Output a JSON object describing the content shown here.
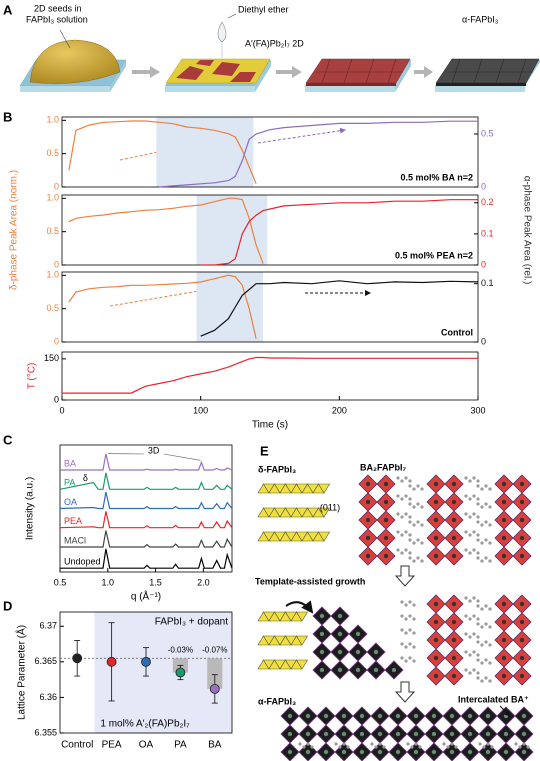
{
  "panels": {
    "a": "A",
    "b": "B",
    "c": "C",
    "d": "D",
    "e": "E"
  },
  "panel_a": {
    "seed_lines": [
      "2D seeds in",
      "FAPbI₃ solution"
    ],
    "ether": "Diethyl ether",
    "two_d": "A′(FA)Pb₂I₇ 2D",
    "alpha": "α-FAPbI₃"
  },
  "panel_b": {
    "ylabel": "δ-phase Peak Area (norm.)",
    "y2label": "α-phase Peak Area (rel.)"
  },
  "panel_e": {
    "delta": "δ-FAPbI₃",
    "layered": "BA₂FAPbI₇",
    "plane": "(011)",
    "growth": "Template-assisted growth",
    "alpha": "α-FAPbI₃",
    "intercalated": "Intercalated BA⁺"
  },
  "chart_data": [
    {
      "type": "line",
      "annotation": "0.5 mol% BA n=2",
      "xlim": [
        0,
        300
      ],
      "ylim": [
        0,
        1.05
      ],
      "yticks": [
        0,
        0.5,
        {
          "value": 1,
          "label": "1.0"
        }
      ],
      "y2lim": [
        0,
        0.66
      ],
      "y2ticks": [
        0,
        0.5
      ],
      "shaded": [
        68,
        138
      ],
      "x": [
        0,
        5,
        10,
        20,
        30,
        40,
        50,
        60,
        70,
        80,
        90,
        100,
        110,
        120,
        125,
        130,
        135,
        140,
        145,
        150,
        160,
        180,
        200,
        220,
        240,
        260,
        280,
        300
      ],
      "series": [
        {
          "color": "#f07f3c",
          "values": [
            null,
            0.25,
            0.85,
            0.93,
            0.97,
            0.98,
            0.99,
            0.99,
            0.97,
            0.95,
            0.9,
            0.88,
            0.85,
            0.8,
            0.75,
            0.55,
            0.3,
            0.05,
            null,
            null,
            null,
            null,
            null,
            null,
            null,
            null,
            null,
            null
          ]
        },
        {
          "color": "#8e6bbf",
          "axis": "y2",
          "values": [
            null,
            null,
            null,
            null,
            null,
            null,
            null,
            null,
            0,
            0.01,
            0.02,
            0.03,
            0.04,
            0.06,
            0.1,
            0.25,
            0.45,
            0.5,
            0.52,
            0.54,
            0.56,
            0.58,
            0.6,
            0.6,
            0.61,
            0.61,
            0.62,
            0.62
          ]
        }
      ]
    },
    {
      "type": "line",
      "annotation": "0.5 mol% PEA n=2",
      "xlim": [
        0,
        300
      ],
      "ylim": [
        0,
        1.05
      ],
      "yticks": [
        0,
        0.5,
        {
          "value": 1,
          "label": "1.0"
        }
      ],
      "y2lim": [
        0,
        0.225
      ],
      "y2ticks": [
        0,
        0.1,
        0.2
      ],
      "shaded": [
        97,
        148
      ],
      "x": [
        0,
        5,
        10,
        20,
        30,
        40,
        50,
        60,
        70,
        80,
        90,
        100,
        110,
        120,
        125,
        130,
        135,
        140,
        145,
        150,
        160,
        180,
        200,
        220,
        240,
        260,
        280,
        300
      ],
      "series": [
        {
          "color": "#f07f3c",
          "values": [
            null,
            0.65,
            0.7,
            0.73,
            0.75,
            0.78,
            0.8,
            0.82,
            0.83,
            0.85,
            0.88,
            0.9,
            0.95,
            1,
            1,
            0.98,
            0.7,
            0.3,
            0.02,
            null,
            null,
            null,
            null,
            null,
            null,
            null,
            null,
            null
          ]
        },
        {
          "color": "#e8242b",
          "axis": "y2",
          "values": [
            null,
            null,
            null,
            null,
            null,
            null,
            null,
            null,
            null,
            null,
            null,
            0,
            0,
            0.005,
            0.02,
            0.1,
            0.14,
            0.16,
            0.175,
            0.18,
            0.19,
            0.195,
            0.2,
            0.2,
            0.205,
            0.205,
            0.21,
            0.21
          ]
        }
      ]
    },
    {
      "type": "line",
      "annotation": "Control",
      "xlim": [
        0,
        300
      ],
      "ylim": [
        0,
        1.05
      ],
      "yticks": [
        0,
        0.5,
        {
          "value": 1,
          "label": "1.0"
        }
      ],
      "y2lim": [
        0,
        0.12
      ],
      "y2ticks": [
        0,
        0.1
      ],
      "shaded": [
        97,
        145
      ],
      "x": [
        0,
        5,
        10,
        20,
        30,
        40,
        50,
        60,
        70,
        80,
        90,
        100,
        110,
        120,
        125,
        130,
        135,
        140,
        145,
        150,
        160,
        180,
        200,
        220,
        240,
        260,
        280,
        300
      ],
      "series": [
        {
          "color": "#f07f3c",
          "values": [
            null,
            0.6,
            0.75,
            0.8,
            0.82,
            0.83,
            0.85,
            0.85,
            0.86,
            0.87,
            0.88,
            0.9,
            0.95,
            1,
            0.98,
            0.85,
            0.5,
            0.05,
            null,
            null,
            null,
            null,
            null,
            null,
            null,
            null,
            null,
            null
          ]
        },
        {
          "color": "#111111",
          "axis": "y2",
          "values": [
            null,
            null,
            null,
            null,
            null,
            null,
            null,
            null,
            null,
            null,
            null,
            0.01,
            0.02,
            0.04,
            0.06,
            0.08,
            0.09,
            0.1,
            0.1,
            0.1,
            0.102,
            0.1,
            0.105,
            0.1,
            0.103,
            0.102,
            0.104,
            0.103
          ]
        }
      ]
    },
    {
      "type": "line",
      "ylabel": "T (°C)",
      "xlabel": "Time (s)",
      "xlim": [
        0,
        300
      ],
      "xticks": [
        0,
        100,
        200,
        300
      ],
      "ylim": [
        0,
        175
      ],
      "yticks": [
        0,
        150
      ],
      "x": [
        0,
        5,
        10,
        20,
        30,
        40,
        50,
        60,
        70,
        80,
        90,
        100,
        110,
        120,
        125,
        130,
        135,
        140,
        145,
        150,
        160,
        180,
        200,
        220,
        240,
        260,
        280,
        300
      ],
      "series": [
        {
          "color": "#e8242b",
          "values": [
            25,
            25,
            25,
            25,
            25,
            25,
            25,
            50,
            60,
            70,
            85,
            95,
            105,
            120,
            130,
            140,
            150,
            155,
            155,
            153,
            153,
            152,
            152,
            152,
            152,
            152,
            152,
            152
          ]
        }
      ]
    },
    {
      "type": "line",
      "xlabel": "q (Å⁻¹)",
      "ylabel": "Intensity (a.u.)",
      "xlim": [
        0.5,
        2.3
      ],
      "ylim": [
        0,
        6.6
      ],
      "xticks": [
        0.5,
        {
          "value": 1,
          "label": "1.0"
        },
        1.5,
        {
          "value": 2,
          "label": "2.0"
        }
      ],
      "annotations": [
        "3D",
        "δ"
      ],
      "x": [
        0.5,
        0.85,
        0.9,
        0.95,
        0.98,
        1.02,
        1.1,
        1.38,
        1.41,
        1.44,
        1.68,
        1.71,
        1.74,
        1.95,
        1.98,
        2.01,
        2.1,
        2.14,
        2.18,
        2.22,
        2.25,
        2.3
      ],
      "series": [
        {
          "name": "BA",
          "color": "#9b6fc5",
          "values": [
            5.3,
            5.3,
            5.3,
            5.3,
            6.15,
            5.3,
            5.3,
            5.3,
            5.35,
            5.3,
            5.3,
            5.35,
            5.3,
            5.3,
            5.7,
            5.3,
            5.3,
            5.38,
            5.3,
            5.3,
            5.4,
            5.3
          ]
        },
        {
          "name": "PA",
          "color": "#1a9a6c",
          "values": [
            4.3,
            4.65,
            4.3,
            4.3,
            5.15,
            4.3,
            4.3,
            4.3,
            4.4,
            4.3,
            4.3,
            4.4,
            4.3,
            4.3,
            4.65,
            4.3,
            4.3,
            4.5,
            4.3,
            4.3,
            4.5,
            4.3
          ]
        },
        {
          "name": "OA",
          "color": "#2f6db3",
          "values": [
            3.3,
            3.35,
            3.3,
            3.3,
            4.15,
            3.3,
            3.3,
            3.3,
            3.4,
            3.3,
            3.3,
            3.4,
            3.3,
            3.3,
            3.6,
            3.3,
            3.3,
            3.55,
            3.3,
            3.3,
            3.6,
            3.3
          ]
        },
        {
          "name": "PEA",
          "color": "#e8242b",
          "values": [
            2.3,
            2.35,
            2.3,
            2.3,
            3.15,
            2.3,
            2.3,
            2.3,
            2.4,
            2.3,
            2.3,
            2.42,
            2.3,
            2.3,
            2.6,
            2.3,
            2.3,
            2.6,
            2.3,
            2.3,
            2.65,
            2.3
          ]
        },
        {
          "name": "MACl",
          "color": "#444444",
          "values": [
            1.3,
            1.3,
            1.3,
            1.3,
            2.15,
            1.3,
            1.3,
            1.3,
            1.42,
            1.3,
            1.3,
            1.45,
            1.3,
            1.3,
            1.65,
            1.3,
            1.3,
            1.6,
            1.3,
            1.3,
            1.7,
            1.3
          ]
        },
        {
          "name": "Undoped",
          "color": "#000000",
          "values": [
            0.2,
            0.2,
            0.2,
            0.2,
            1.2,
            0.2,
            0.2,
            0.2,
            0.35,
            0.2,
            0.2,
            0.4,
            0.2,
            0.2,
            0.7,
            0.2,
            0.2,
            0.6,
            0.2,
            0.2,
            0.9,
            0.2
          ]
        }
      ]
    },
    {
      "type": "errorbar",
      "ylabel": "Lattice Parameter (Å)",
      "categories": [
        "Control",
        "PEA",
        "OA",
        "PA",
        "BA"
      ],
      "values": [
        6.3655,
        6.365,
        6.365,
        6.3635,
        6.3612
      ],
      "errors": [
        0.0025,
        0.0055,
        0.002,
        0.001,
        0.002
      ],
      "colors": [
        "#222222",
        "#e8242b",
        "#2f6db3",
        "#1a9a6c",
        "#9b6fc5"
      ],
      "ylim": [
        6.355,
        6.372
      ],
      "yticks": [
        6.355,
        6.36,
        6.365,
        6.37
      ],
      "change_labels": [
        null,
        null,
        null,
        "-0.03%",
        "-0.07%"
      ],
      "group_label": "FAPbI₃ + dopant",
      "note": "1 mol% A′₂(FA)Pb₂I₇"
    }
  ]
}
